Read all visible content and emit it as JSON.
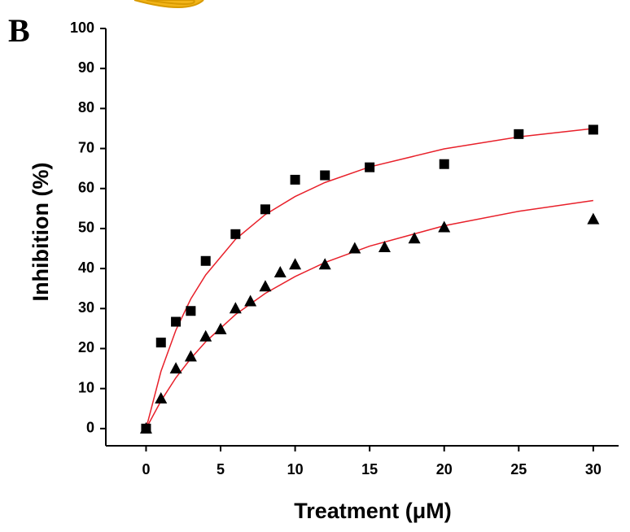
{
  "chart_data": {
    "type": "scatter",
    "panel_label": "B",
    "xlabel": "Treatment (μM)",
    "ylabel": "Inhibition (%)",
    "xlim": [
      -2.7,
      31.7
    ],
    "ylim": [
      -4.3,
      100
    ],
    "xticks": [
      0,
      5,
      10,
      15,
      20,
      25,
      30
    ],
    "yticks": [
      0,
      10,
      20,
      30,
      40,
      50,
      60,
      70,
      80,
      90,
      100
    ],
    "series": [
      {
        "marker": "square",
        "color": "#000000",
        "x": [
          0,
          1,
          2,
          3,
          4,
          6,
          8,
          10,
          12,
          15,
          20,
          25,
          30
        ],
        "values": [
          0,
          21.5,
          26.7,
          29.4,
          41.9,
          48.6,
          54.8,
          62.2,
          63.3,
          65.3,
          66.1,
          73.6,
          74.7
        ]
      },
      {
        "marker": "triangle",
        "color": "#000000",
        "x": [
          0,
          1,
          2,
          3,
          4,
          5,
          6,
          7,
          8,
          9,
          10,
          12,
          14,
          16,
          18,
          20,
          30
        ],
        "values": [
          0,
          7.5,
          15,
          18,
          23,
          24.8,
          30,
          31.8,
          35.5,
          39,
          41,
          41,
          45,
          45.3,
          47.5,
          50.3,
          52.3
        ]
      }
    ],
    "fits": [
      {
        "color": "#e8202a",
        "x": [
          0,
          1,
          2,
          3,
          4,
          6,
          8,
          10,
          12,
          15,
          20,
          25,
          30
        ],
        "values": [
          0,
          14.3,
          24.6,
          32.4,
          38.4,
          47.3,
          53.5,
          58.0,
          61.5,
          65.4,
          69.9,
          72.9,
          75.0
        ]
      },
      {
        "color": "#e8202a",
        "x": [
          0,
          1,
          2,
          3,
          4,
          6,
          8,
          10,
          12,
          15,
          20,
          25,
          30
        ],
        "values": [
          0,
          6.9,
          12.7,
          17.5,
          21.7,
          28.5,
          33.8,
          38.0,
          41.5,
          45.6,
          50.7,
          54.3,
          57.0
        ]
      }
    ]
  }
}
